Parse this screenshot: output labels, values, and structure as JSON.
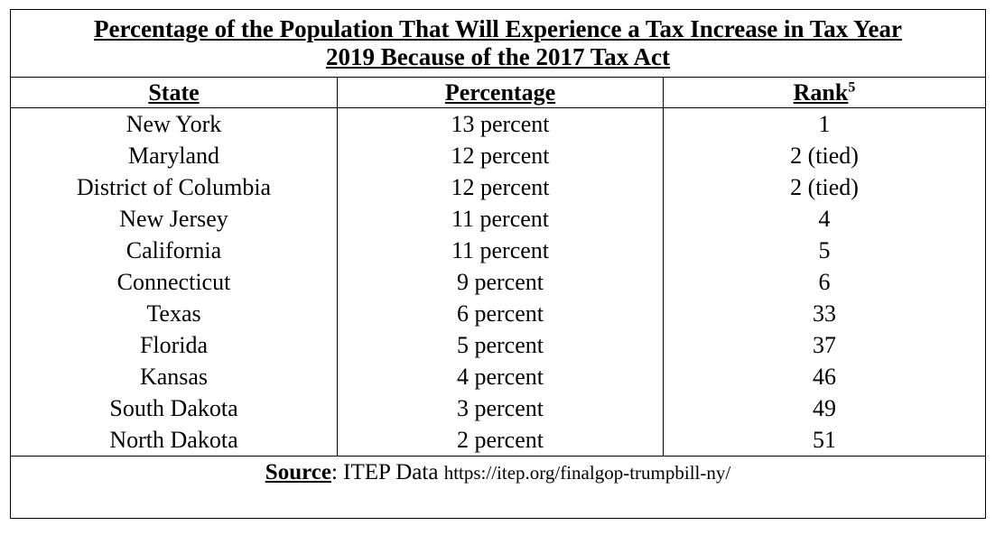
{
  "table": {
    "title_lines": [
      "Percentage of the Population That Will Experience a Tax Increase in Tax Year",
      "2019 Because of the 2017 Tax Act"
    ],
    "headers": [
      "State",
      "Percentage",
      "Rank"
    ],
    "rank_footnote": "5",
    "rows": [
      [
        "New York",
        "13 percent",
        "1"
      ],
      [
        "Maryland",
        "12 percent",
        "2 (tied)"
      ],
      [
        "District of Columbia",
        "12 percent",
        "2 (tied)"
      ],
      [
        "New Jersey",
        "11 percent",
        "4"
      ],
      [
        "California",
        "11 percent",
        "5"
      ],
      [
        "Connecticut",
        "9 percent",
        "6"
      ],
      [
        "Texas",
        "6 percent",
        "33"
      ],
      [
        "Florida",
        "5 percent",
        "37"
      ],
      [
        "Kansas",
        "4 percent",
        "46"
      ],
      [
        "South Dakota",
        "3 percent",
        "49"
      ],
      [
        "North Dakota",
        "2 percent",
        "51"
      ]
    ],
    "source": {
      "label": "Source",
      "text": ": ITEP Data",
      "url": "https://itep.org/finalgop-trumpbill-ny/"
    }
  }
}
